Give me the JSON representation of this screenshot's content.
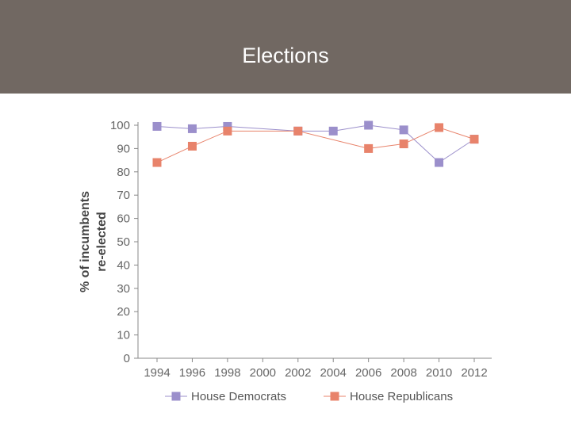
{
  "slide": {
    "title": "Elections"
  },
  "chart_data": {
    "type": "line",
    "title": "",
    "xlabel": "",
    "ylabel": "% of incumbents re-elected",
    "ylabel_lines": [
      "% of incumbents",
      "re-elected"
    ],
    "ylim": [
      0,
      100
    ],
    "yticks": [
      0,
      10,
      20,
      30,
      40,
      50,
      60,
      70,
      80,
      90,
      100
    ],
    "categories": [
      "1994",
      "1996",
      "1998",
      "2000",
      "2002",
      "2004",
      "2006",
      "2008",
      "2010",
      "2012"
    ],
    "series": [
      {
        "name": "House Democrats",
        "color": "#9b8fcb",
        "points": [
          {
            "x": "1994",
            "y": 99.5
          },
          {
            "x": "1996",
            "y": 98.5
          },
          {
            "x": "1998",
            "y": 99.5
          },
          {
            "x": "2002",
            "y": 97.5
          },
          {
            "x": "2004",
            "y": 97.5
          },
          {
            "x": "2006",
            "y": 100
          },
          {
            "x": "2008",
            "y": 98
          },
          {
            "x": "2010",
            "y": 84
          },
          {
            "x": "2012",
            "y": 94
          }
        ]
      },
      {
        "name": "House Republicans",
        "color": "#e8836b",
        "points": [
          {
            "x": "1994",
            "y": 84
          },
          {
            "x": "1996",
            "y": 91
          },
          {
            "x": "1998",
            "y": 97.5
          },
          {
            "x": "2002",
            "y": 97.5
          },
          {
            "x": "2006",
            "y": 90
          },
          {
            "x": "2008",
            "y": 92
          },
          {
            "x": "2010",
            "y": 99
          },
          {
            "x": "2012",
            "y": 94
          }
        ]
      }
    ],
    "legend": {
      "position": "bottom"
    }
  }
}
